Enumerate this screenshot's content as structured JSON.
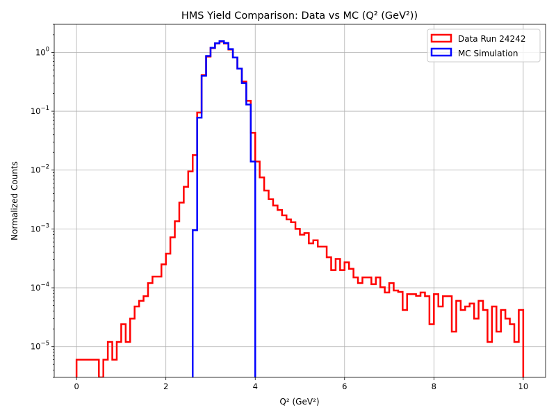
{
  "chart_data": {
    "type": "line",
    "title": "HMS Yield Comparison: Data vs MC (Q² (GeV²))",
    "xlabel": "Q² (GeV²)",
    "ylabel": "Normalized Counts",
    "xlim": [
      -0.5,
      10.5
    ],
    "ylim": [
      3e-06,
      3
    ],
    "yscale": "log",
    "grid": true,
    "legend_position": "top-right",
    "x_ticks": [
      0,
      2,
      4,
      6,
      8,
      10
    ],
    "x_tick_labels": [
      "0",
      "2",
      "4",
      "6",
      "8",
      "10"
    ],
    "y_ticks": [
      1e-05,
      0.0001,
      0.001,
      0.01,
      0.1,
      1
    ],
    "y_tick_labels": [
      {
        "base": "10",
        "exp": "−5"
      },
      {
        "base": "10",
        "exp": "−4"
      },
      {
        "base": "10",
        "exp": "−3"
      },
      {
        "base": "10",
        "exp": "−2"
      },
      {
        "base": "10",
        "exp": "−1"
      },
      {
        "base": "10",
        "exp": "0"
      }
    ],
    "bin_width": 0.1,
    "series": [
      {
        "name": "Data Run 24242",
        "color": "#ff0000",
        "bin_start": 0.0,
        "values": [
          6e-06,
          6e-06,
          6e-06,
          6e-06,
          6e-06,
          0,
          6e-06,
          1.2e-05,
          6e-06,
          1.2e-05,
          2.4e-05,
          1.2e-05,
          3e-05,
          4.8e-05,
          6e-05,
          7.2e-05,
          0.00012,
          0.000155,
          0.000155,
          0.00025,
          0.00038,
          0.00072,
          0.00135,
          0.0028,
          0.0052,
          0.0095,
          0.018,
          0.095,
          0.41,
          0.85,
          1.18,
          1.42,
          1.52,
          1.42,
          1.12,
          0.82,
          0.53,
          0.32,
          0.15,
          0.043,
          0.014,
          0.0075,
          0.0045,
          0.0032,
          0.0025,
          0.0021,
          0.0017,
          0.00145,
          0.0013,
          0.001,
          0.0008,
          0.00085,
          0.00057,
          0.00064,
          0.0005,
          0.0005,
          0.00033,
          0.0002,
          0.00031,
          0.0002,
          0.00027,
          0.00021,
          0.00015,
          0.00012,
          0.00015,
          0.00015,
          0.000115,
          0.00015,
          0.000102,
          8.3e-05,
          0.00012,
          9e-05,
          8.5e-05,
          4.2e-05,
          7.8e-05,
          7.8e-05,
          7.3e-05,
          8.3e-05,
          7.2e-05,
          2.4e-05,
          7.8e-05,
          4.8e-05,
          7.2e-05,
          7.2e-05,
          1.8e-05,
          6e-05,
          4.2e-05,
          4.8e-05,
          5.4e-05,
          3e-05,
          6e-05,
          4.2e-05,
          1.2e-05,
          4.8e-05,
          1.8e-05,
          4.2e-05,
          3e-05,
          2.4e-05,
          1.2e-05,
          4.2e-05
        ]
      },
      {
        "name": "MC Simulation",
        "color": "#0000ff",
        "bin_start": 2.6,
        "values": [
          0.00095,
          0.078,
          0.4,
          0.87,
          1.2,
          1.43,
          1.55,
          1.45,
          1.14,
          0.82,
          0.53,
          0.3,
          0.13,
          0.014
        ]
      }
    ]
  }
}
